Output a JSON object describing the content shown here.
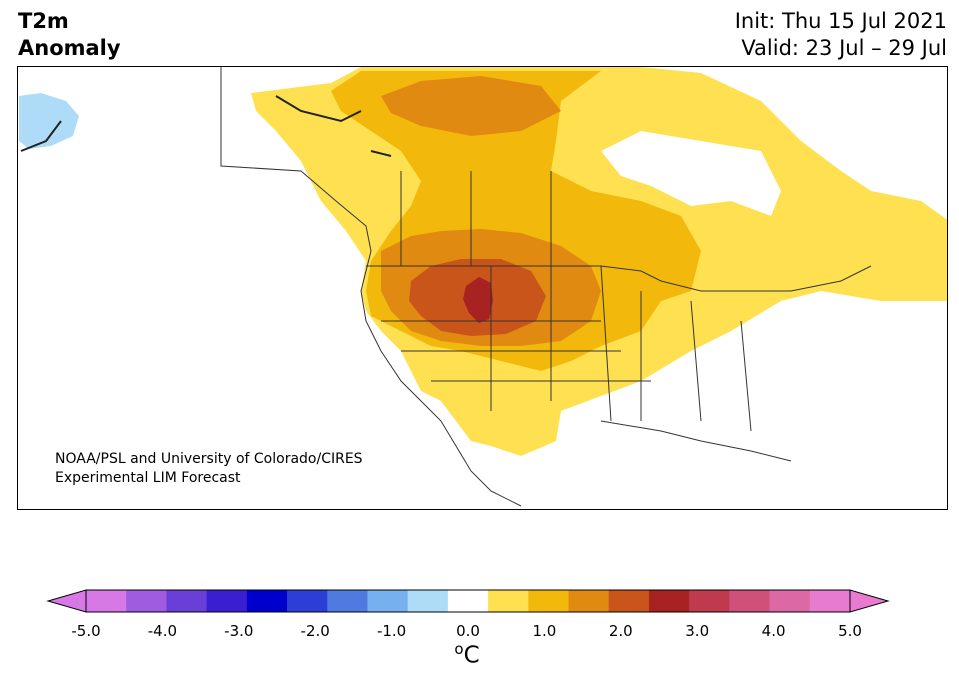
{
  "header": {
    "title_line1": "T2m",
    "title_line2": "Anomaly",
    "init": "Init: Thu 15 Jul 2021",
    "valid": "Valid: 23 Jul – 29 Jul"
  },
  "credit": {
    "line1": "NOAA/PSL and University of Colorado/CIRES",
    "line2": "Experimental LIM Forecast"
  },
  "colorbar": {
    "unit_main": "C",
    "unit_sup": "o",
    "ticks": [
      "-5.0",
      "-4.0",
      "-3.0",
      "-2.0",
      "-1.0",
      "0.0",
      "1.0",
      "2.0",
      "3.0",
      "4.0",
      "5.0"
    ],
    "levels": [
      -5.0,
      -4.5,
      -4.0,
      -3.5,
      -3.0,
      -2.5,
      -2.0,
      -1.5,
      -1.0,
      -0.5,
      0.5,
      1.0,
      1.5,
      2.0,
      2.5,
      3.0,
      3.5,
      4.0,
      4.5,
      5.0
    ],
    "colors": [
      "#d679e6",
      "#a05ce0",
      "#6a3fd8",
      "#3a1fd0",
      "#0000cc",
      "#2b3fd6",
      "#4f7ae0",
      "#77b0ee",
      "#aedcf8",
      "#ffffff",
      "#fee050",
      "#f2b90c",
      "#e08a12",
      "#c9551a",
      "#a82222",
      "#c03a4e",
      "#cf5078",
      "#dc69a6",
      "#e87ad0"
    ],
    "extend_low_color": "#d679e6",
    "extend_high_color": "#e87ad0"
  },
  "map": {
    "region": "North America",
    "land_color": "#ffffff",
    "ocean_color": "#ffffff",
    "anomalies": [
      {
        "area": "Northern Rockies / Northern Plains",
        "anomaly_c": 3.0
      },
      {
        "area": "Alaska (north coast)",
        "anomaly_c": -1.0
      },
      {
        "area": "Canadian Prairies",
        "anomaly_c": 1.5
      },
      {
        "area": "Hudson Bay region",
        "anomaly_c": 1.0
      },
      {
        "area": "Eastern Canada",
        "anomaly_c": 1.0
      }
    ]
  }
}
